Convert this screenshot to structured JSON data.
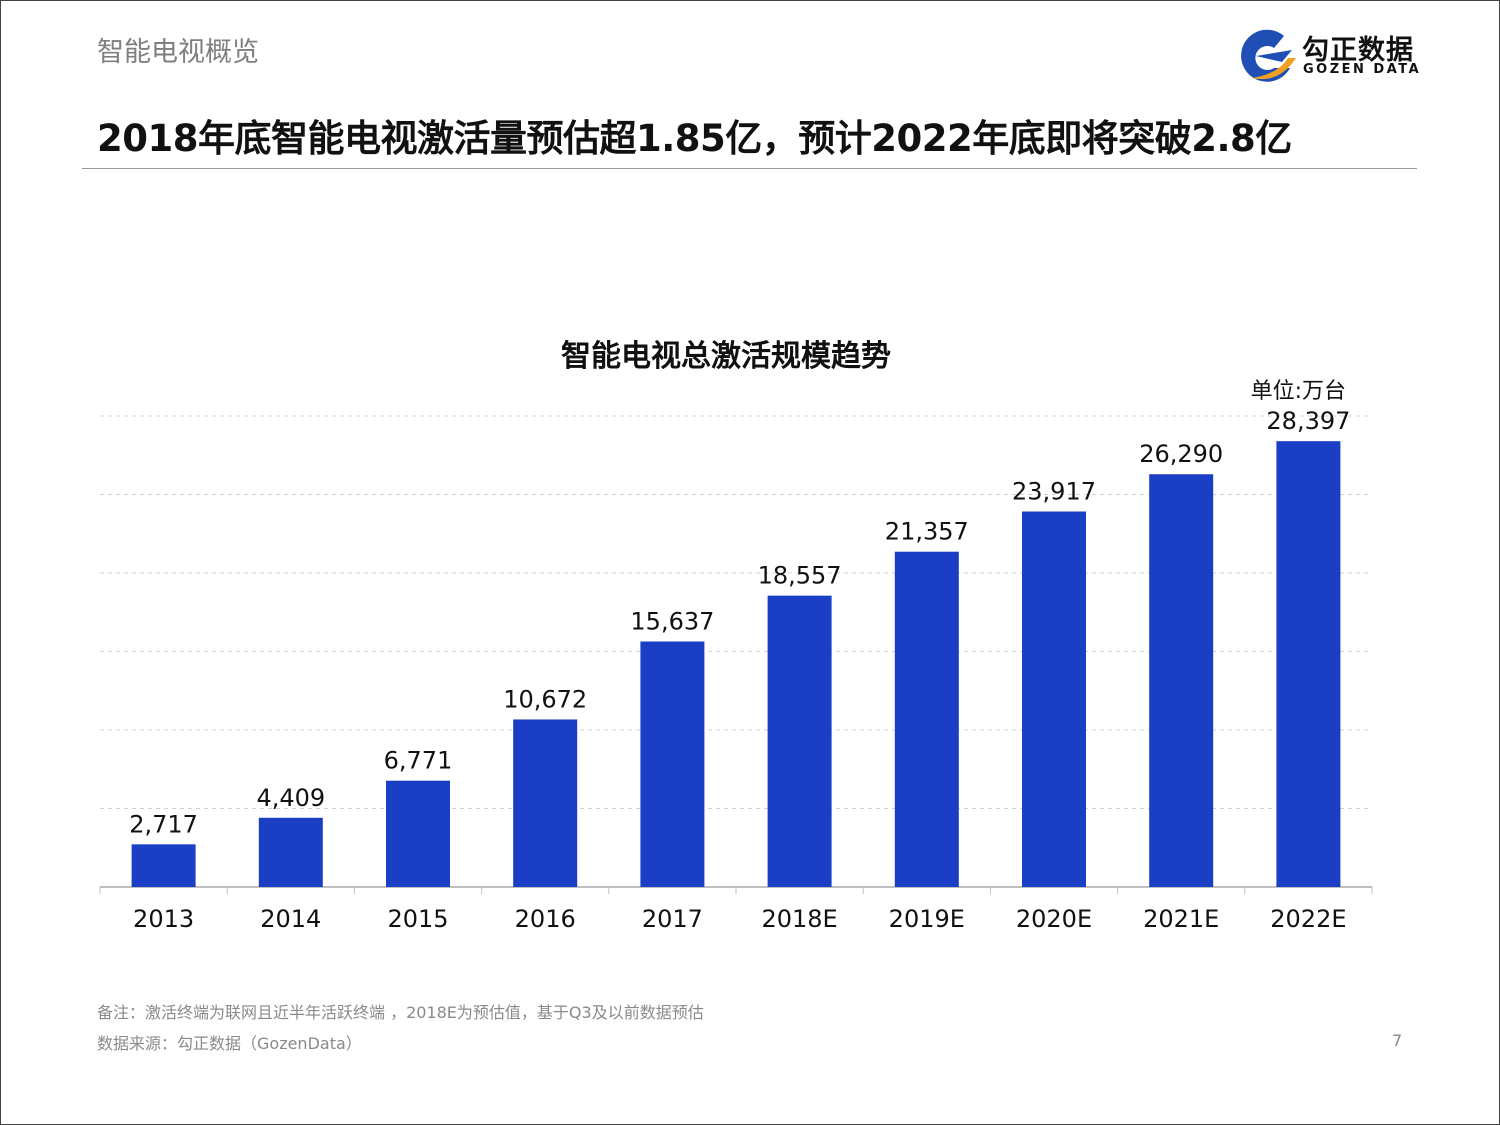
{
  "header": {
    "section": "智能电视概览",
    "headline": "2018年底智能电视激活量预估超1.85亿，预计2022年底即将突破2.8亿",
    "logo_cn": "勾正数据",
    "logo_en": "GOZEN DATA"
  },
  "footer": {
    "note": "备注：激活终端为联网且近半年活跃终端 ，2018E为预估值，基于Q3及以前数据预估",
    "source": "数据来源：勾正数据（GozenData）",
    "page_number": "7"
  },
  "colors": {
    "bar": "#1a3fc4",
    "logo_blue": "#1f4fb5",
    "logo_orange": "#f0a020"
  },
  "chart_data": {
    "type": "bar",
    "title": "智能电视总激活规模趋势",
    "unit_label": "单位:万台",
    "categories": [
      "2013",
      "2014",
      "2015",
      "2016",
      "2017",
      "2018E",
      "2019E",
      "2020E",
      "2021E",
      "2022E"
    ],
    "values": [
      2717,
      4409,
      6771,
      10672,
      15637,
      18557,
      21357,
      23917,
      26290,
      28397
    ],
    "data_labels": [
      "2,717",
      "4,409",
      "6,771",
      "10,672",
      "15,637",
      "18,557",
      "21,357",
      "23,917",
      "26,290",
      "28,397"
    ],
    "ylim": [
      0,
      30000
    ],
    "grid_step": 5000,
    "grid": true,
    "y_tick_labels_shown": false
  }
}
